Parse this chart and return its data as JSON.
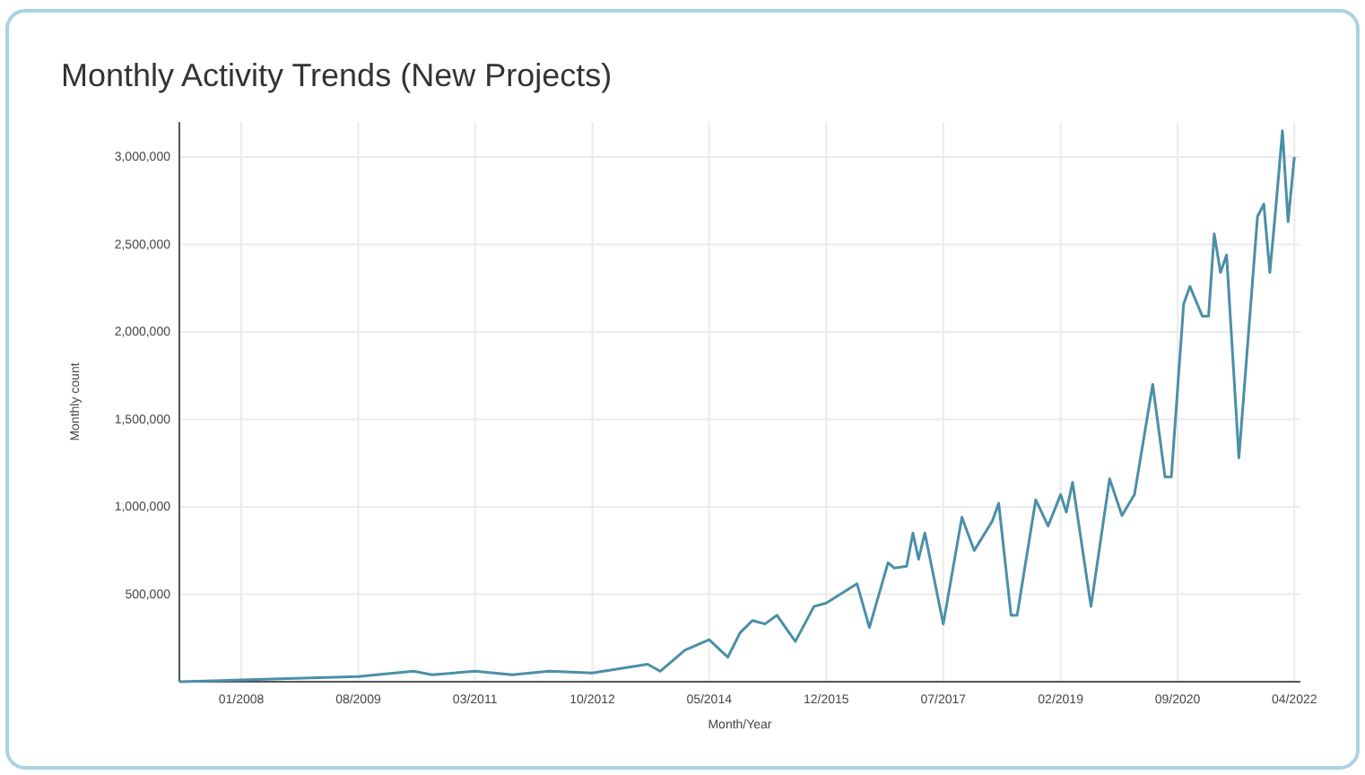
{
  "chart_data": {
    "type": "line",
    "title": "Monthly Activity Trends (New Projects)",
    "xlabel": "Month/Year",
    "ylabel": "Monthly count",
    "x": [
      "2007-03",
      "2008-01",
      "2009-08",
      "2010-05",
      "2010-08",
      "2011-03",
      "2011-09",
      "2012-03",
      "2012-10",
      "2013-07",
      "2013-09",
      "2014-01",
      "2014-05",
      "2014-08",
      "2014-10",
      "2014-12",
      "2015-02",
      "2015-04",
      "2015-07",
      "2015-10",
      "2015-12",
      "2016-05",
      "2016-07",
      "2016-10",
      "2016-11",
      "2017-01",
      "2017-02",
      "2017-03",
      "2017-04",
      "2017-07",
      "2017-10",
      "2017-12",
      "2018-03",
      "2018-04",
      "2018-06",
      "2018-07",
      "2018-10",
      "2018-12",
      "2019-02",
      "2019-03",
      "2019-04",
      "2019-07",
      "2019-10",
      "2019-12",
      "2020-02",
      "2020-05",
      "2020-07",
      "2020-08",
      "2020-10",
      "2020-11",
      "2021-01",
      "2021-02",
      "2021-03",
      "2021-04",
      "2021-05",
      "2021-07",
      "2021-10",
      "2021-11",
      "2021-12",
      "2022-01",
      "2022-02",
      "2022-03",
      "2022-04"
    ],
    "series": [
      {
        "color": "#4a8fa8",
        "values": [
          0,
          10000,
          30000,
          60000,
          40000,
          60000,
          40000,
          60000,
          50000,
          100000,
          60000,
          180000,
          240000,
          140000,
          280000,
          350000,
          330000,
          380000,
          230000,
          430000,
          450000,
          560000,
          310000,
          680000,
          650000,
          660000,
          850000,
          700000,
          850000,
          330000,
          940000,
          750000,
          920000,
          1020000,
          380000,
          380000,
          1040000,
          890000,
          1070000,
          970000,
          1140000,
          430000,
          1160000,
          950000,
          1070000,
          1700000,
          1170000,
          1170000,
          2160000,
          2260000,
          2090000,
          2090000,
          2560000,
          2340000,
          2440000,
          1280000,
          2660000,
          2730000,
          2340000,
          2730000,
          3150000,
          2630000,
          3000000
        ]
      }
    ],
    "xlim": [
      "2007-03",
      "2022-05"
    ],
    "xticks": [
      {
        "value": "2008-01",
        "label": "01/2008"
      },
      {
        "value": "2009-08",
        "label": "08/2009"
      },
      {
        "value": "2011-03",
        "label": "03/2011"
      },
      {
        "value": "2012-10",
        "label": "10/2012"
      },
      {
        "value": "2014-05",
        "label": "05/2014"
      },
      {
        "value": "2015-12",
        "label": "12/2015"
      },
      {
        "value": "2017-07",
        "label": "07/2017"
      },
      {
        "value": "2019-02",
        "label": "02/2019"
      },
      {
        "value": "2020-09",
        "label": "09/2020"
      },
      {
        "value": "2022-04",
        "label": "04/2022"
      }
    ],
    "ylim": [
      0,
      3200000
    ],
    "yticks": [
      {
        "value": 500000,
        "label": "500,000"
      },
      {
        "value": 1000000,
        "label": "1,000,000"
      },
      {
        "value": 1500000,
        "label": "1,500,000"
      },
      {
        "value": 2000000,
        "label": "2,000,000"
      },
      {
        "value": 2500000,
        "label": "2,500,000"
      },
      {
        "value": 3000000,
        "label": "3,000,000"
      }
    ],
    "grid": true,
    "marker": "none",
    "line_style": "solid"
  }
}
